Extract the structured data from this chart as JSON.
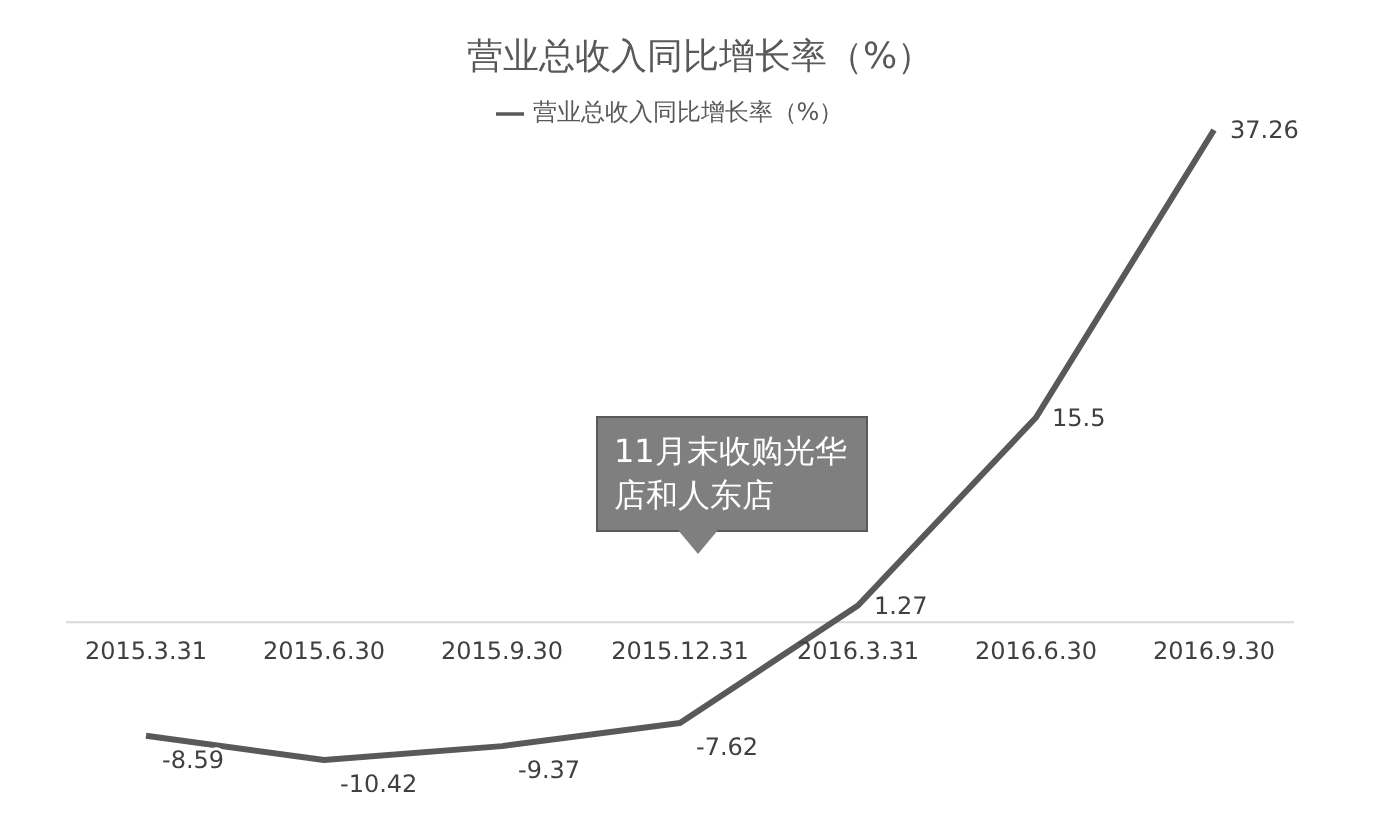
{
  "chart_data": {
    "type": "line",
    "title": "营业总收入同比增长率（%）",
    "categories": [
      "2015.3.31",
      "2015.6.30",
      "2015.9.30",
      "2015.12.31",
      "2016.3.31",
      "2016.6.30",
      "2016.9.30"
    ],
    "series": [
      {
        "name": "营业总收入同比增长率（%）",
        "color": "#595959",
        "values": [
          -8.59,
          -10.42,
          -9.37,
          -7.62,
          1.27,
          15.5,
          37.26
        ]
      }
    ],
    "data_labels": true,
    "legend": "top",
    "marker": "none",
    "line_style": "solid",
    "annotations": [
      "11月末收购光华店和人东店"
    ]
  }
}
